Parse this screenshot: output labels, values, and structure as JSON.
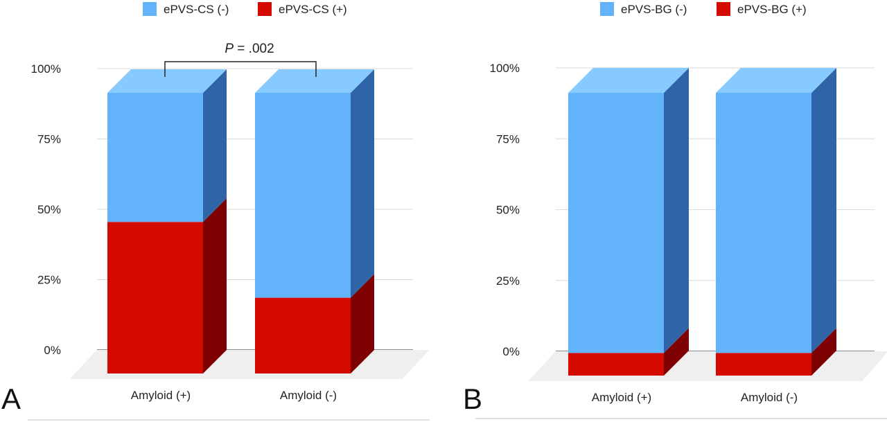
{
  "chart_data": [
    {
      "panel": "A",
      "type": "bar",
      "stacked": true,
      "style": "3d",
      "categories": [
        "Amyloid (+)",
        "Amyloid (-)"
      ],
      "series": [
        {
          "name": "ePVS-CS (+)",
          "values": [
            54,
            27
          ]
        },
        {
          "name": "ePVS-CS (-)",
          "values": [
            46,
            73
          ]
        }
      ],
      "legend": [
        "ePVS-CS (-)",
        "ePVS-CS (+)"
      ],
      "legend_position": "top",
      "yticks": [
        "0%",
        "25%",
        "50%",
        "75%",
        "100%"
      ],
      "ylim": [
        0,
        100
      ],
      "grid": true,
      "annotation": {
        "p_label": "P",
        "p_value": " = .002"
      }
    },
    {
      "panel": "B",
      "type": "bar",
      "stacked": true,
      "style": "3d",
      "categories": [
        "Amyloid (+)",
        "Amyloid (-)"
      ],
      "series": [
        {
          "name": "ePVS-BG (+)",
          "values": [
            8,
            8
          ]
        },
        {
          "name": "ePVS-BG (-)",
          "values": [
            92,
            92
          ]
        }
      ],
      "legend": [
        "ePVS-BG (-)",
        "ePVS-BG (+)"
      ],
      "legend_position": "top",
      "yticks": [
        "0%",
        "25%",
        "50%",
        "75%",
        "100%"
      ],
      "ylim": [
        0,
        100
      ],
      "grid": true
    }
  ],
  "colors": {
    "negative_front": "#63b3fb",
    "negative_top": "#86caff",
    "negative_side": "#2f65a8",
    "positive_front": "#d40a00",
    "positive_side": "#7e0000",
    "grid": "#d9d9d9",
    "floor": "#efefef"
  }
}
